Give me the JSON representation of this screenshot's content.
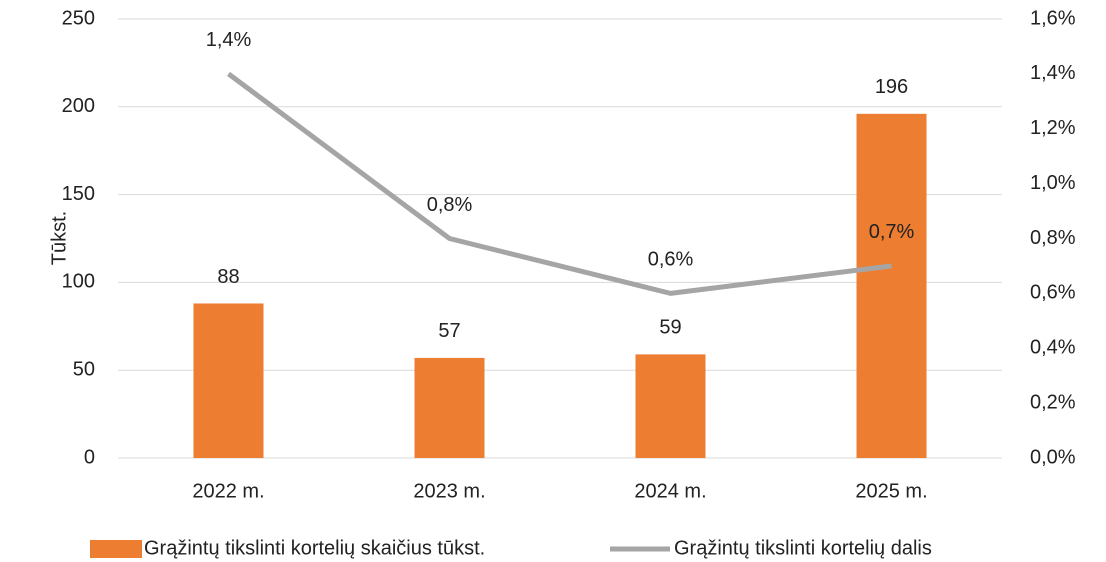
{
  "chart_data": {
    "type": "bar",
    "y_label": "Tūkst.",
    "categories": [
      "2022 m.",
      "2023 m.",
      "2024 m.",
      "2025 m."
    ],
    "series": [
      {
        "name": "Grąžintų tikslinti kortelių skaičius tūkst.",
        "type": "bar",
        "color": "#ed7d31",
        "values": [
          88,
          57,
          59,
          196
        ]
      },
      {
        "name": "Grąžintų tikslinti kortelių dalis",
        "type": "line",
        "axis": "y2",
        "color": "#a5a5a5",
        "values": [
          1.4,
          0.8,
          0.6,
          0.7
        ],
        "value_labels": [
          "1,4%",
          "0,8%",
          "0,6%",
          "0,7%"
        ]
      }
    ],
    "ylim": [
      0,
      250
    ],
    "yticks": [
      0,
      50,
      100,
      150,
      200,
      250
    ],
    "y2lim": [
      0,
      1.6
    ],
    "y2ticks": [
      {
        "value": 0,
        "label": "0,0%"
      },
      {
        "value": 0.2,
        "label": "0,2%"
      },
      {
        "value": 0.4,
        "label": "0,4%"
      },
      {
        "value": 0.6,
        "label": "0,6%"
      },
      {
        "value": 0.8,
        "label": "0,8%"
      },
      {
        "value": 1.0,
        "label": "1,0%"
      },
      {
        "value": 1.2,
        "label": "1,2%"
      },
      {
        "value": 1.4,
        "label": "1,4%"
      },
      {
        "value": 1.6,
        "label": "1,6%"
      }
    ],
    "grid": true,
    "legend": "bottom"
  }
}
